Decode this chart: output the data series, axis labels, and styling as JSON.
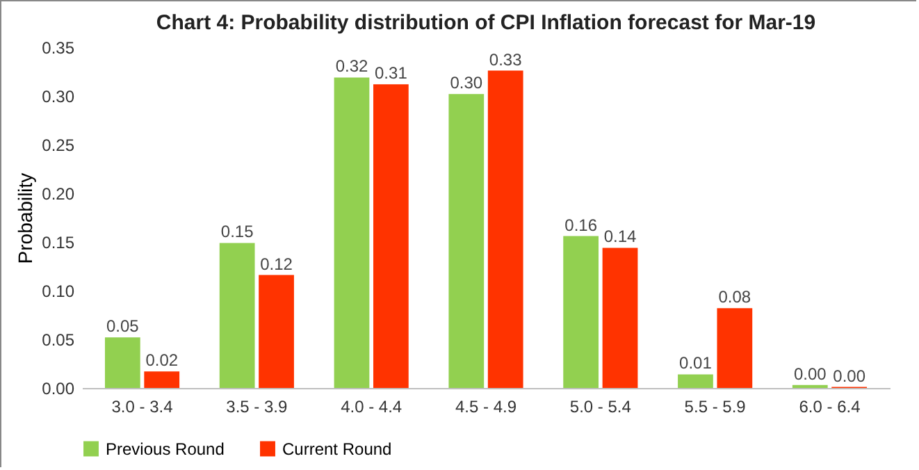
{
  "chart_data": {
    "type": "bar",
    "title": "Chart 4: Probability distribution of CPI Inflation  forecast for Mar-19",
    "ylabel": "Probability",
    "categories": [
      "3.0 - 3.4",
      "3.5 - 3.9",
      "4.0 - 4.4",
      "4.5 - 4.9",
      "5.0 - 5.4",
      "5.5 - 5.9",
      "6.0 - 6.4"
    ],
    "series": [
      {
        "name": "Previous Round",
        "color": "#92d050",
        "values": [
          0.052,
          0.149,
          0.319,
          0.302,
          0.156,
          0.014,
          0.003
        ],
        "value_labels": [
          "0.05",
          "0.15",
          "0.32",
          "0.30",
          "0.16",
          "0.01",
          "0.00"
        ]
      },
      {
        "name": "Current Round",
        "color": "#ff3300",
        "values": [
          0.017,
          0.116,
          0.312,
          0.326,
          0.144,
          0.082,
          0.001
        ],
        "value_labels": [
          "0.02",
          "0.12",
          "0.31",
          "0.33",
          "0.14",
          "0.08",
          "0.00"
        ]
      }
    ],
    "ylim": [
      0,
      0.35
    ],
    "yticks": [
      {
        "value": 0,
        "label": "0.00"
      },
      {
        "value": 0.05,
        "label": "0.05"
      },
      {
        "value": 0.1,
        "label": "0.10"
      },
      {
        "value": 0.15,
        "label": "0.15"
      },
      {
        "value": 0.2,
        "label": "0.20"
      },
      {
        "value": 0.25,
        "label": "0.25"
      },
      {
        "value": 0.3,
        "label": "0.30"
      },
      {
        "value": 0.35,
        "label": "0.35"
      }
    ],
    "grid": false,
    "legend": "bottom"
  }
}
